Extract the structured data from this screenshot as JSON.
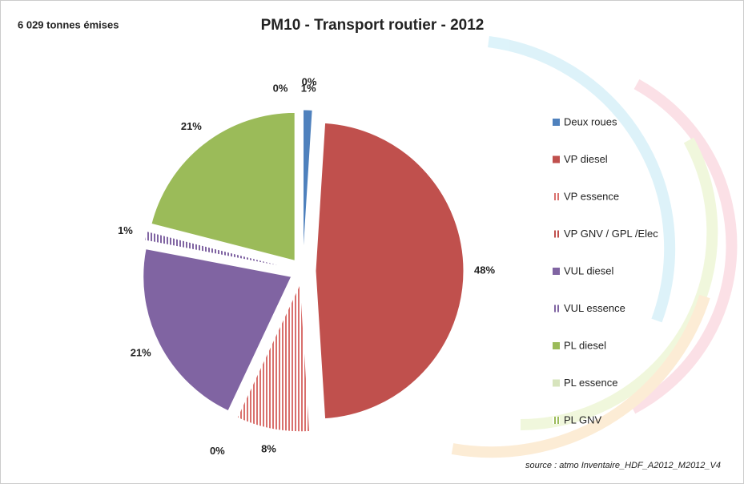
{
  "chart_data": {
    "type": "pie",
    "title": "PM10 - Transport routier - 2012",
    "subtitle": "6 029  tonnes émises",
    "source": "source : atmo Inventaire_HDF_A2012_M2012_V4",
    "categories": [
      "Deux roues",
      "VP diesel",
      "VP essence",
      "VP GNV / GPL /Elec",
      "VUL diesel",
      "VUL essence",
      "PL diesel",
      "PL essence",
      "PL GNV"
    ],
    "values": [
      1,
      48,
      8,
      0,
      21,
      1,
      21,
      0,
      0
    ],
    "value_labels": [
      "1%",
      "48%",
      "8%",
      "0%",
      "21%",
      "1%",
      "21%",
      "0%",
      "0%"
    ],
    "colors": [
      "#4f81bd",
      "#c0504d",
      "#d9706d",
      "#c0504d",
      "#8064a2",
      "#8064a2",
      "#9bbb59",
      "#d7e4bd",
      "#9bbb59"
    ],
    "hatch": [
      false,
      false,
      true,
      true,
      false,
      true,
      false,
      false,
      true
    ],
    "legend": "right"
  }
}
